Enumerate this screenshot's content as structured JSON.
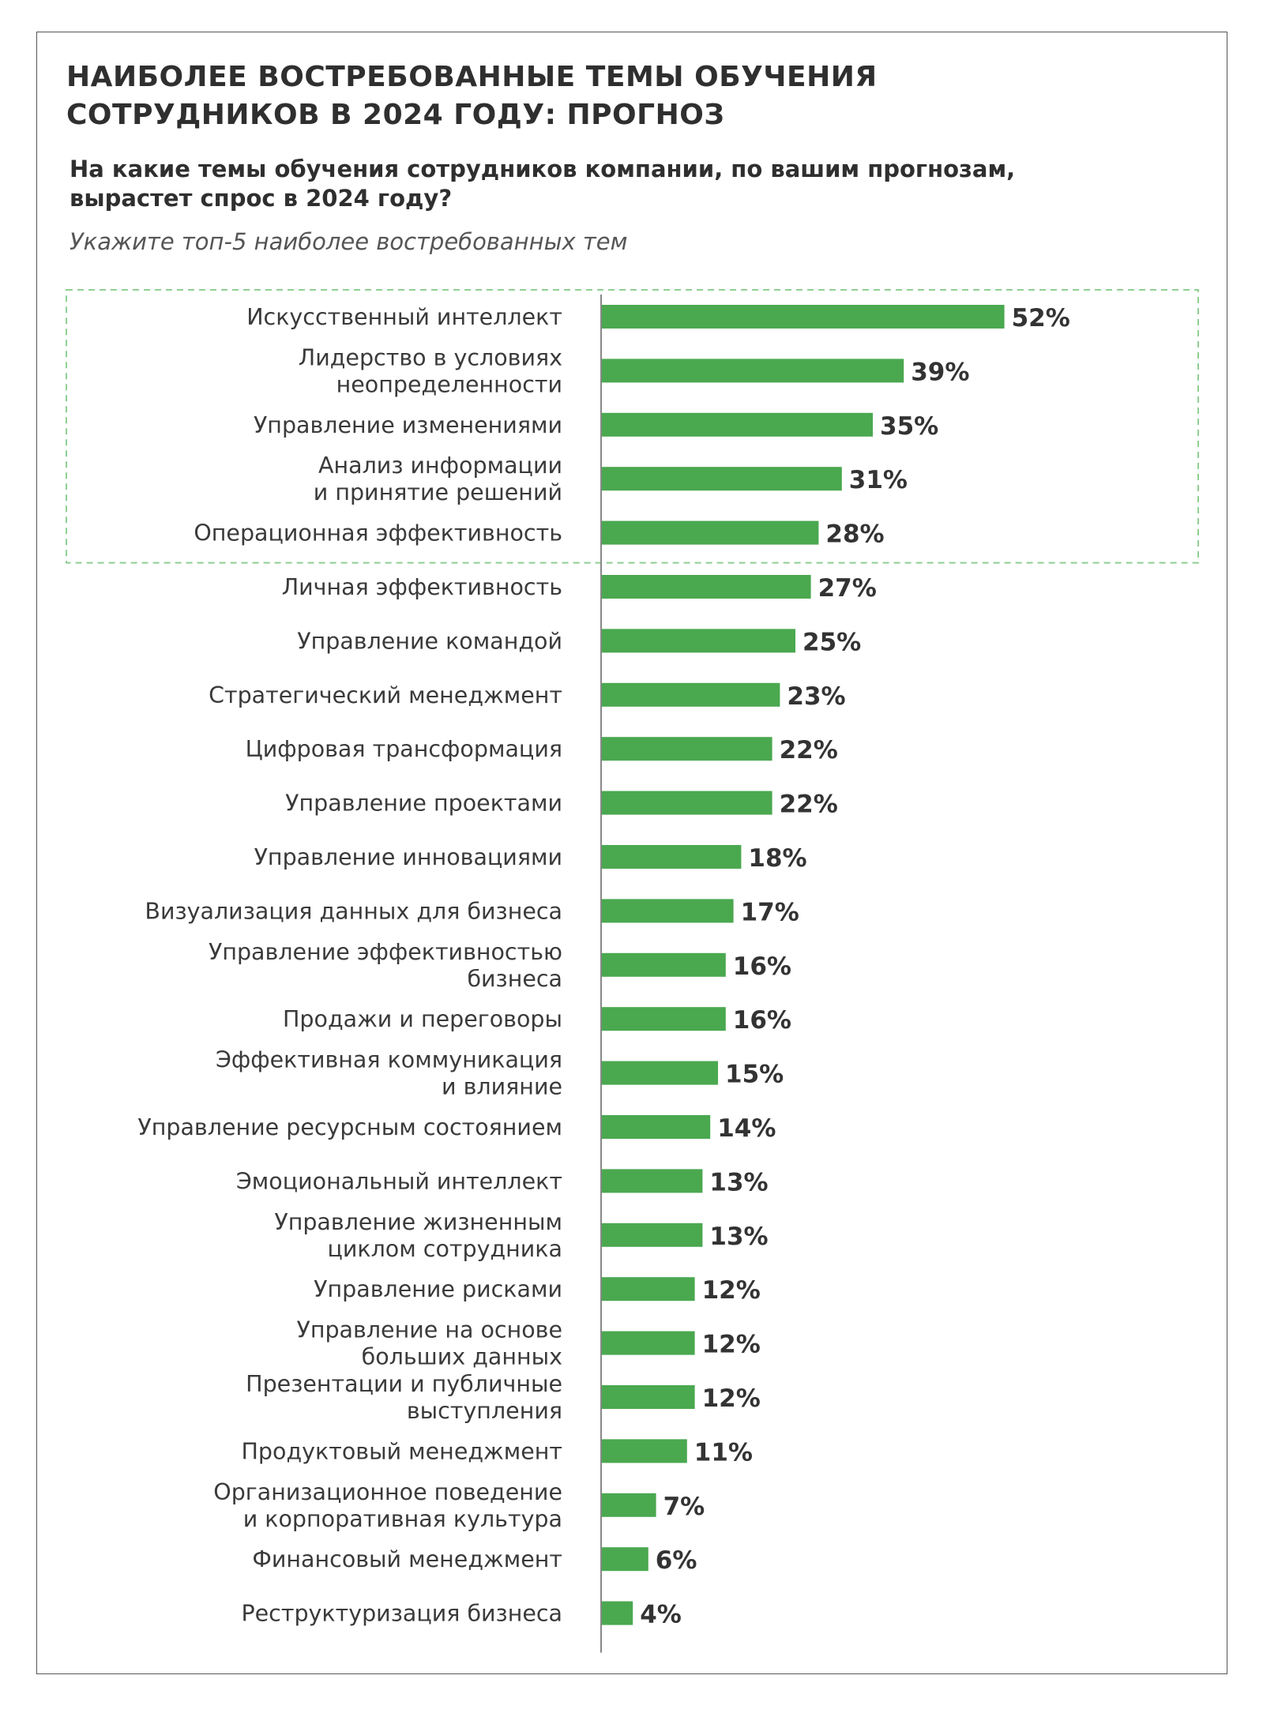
{
  "header": {
    "title_line1": "НАИБОЛЕЕ ВОСТРЕБОВАННЫЕ ТЕМЫ ОБУЧЕНИЯ",
    "title_line2": "СОТРУДНИКОВ В 2024 ГОДУ: ПРОГНОЗ",
    "question_line1": "На какие темы обучения сотрудников компании, по вашим прогнозам,",
    "question_line2": "вырастет спрос в 2024 году?",
    "instruction": "Укажите топ-5 наиболее востребованных тем"
  },
  "chart_data": {
    "type": "bar",
    "orientation": "horizontal",
    "title": "НАИБОЛЕЕ ВОСТРЕБОВАННЫЕ ТЕМЫ ОБУЧЕНИЯ СОТРУДНИКОВ В 2024 ГОДУ: ПРОГНОЗ",
    "categories": [
      [
        "Искусственный интеллект"
      ],
      [
        "Лидерство в условиях",
        "неопределенности"
      ],
      [
        "Управление изменениями"
      ],
      [
        "Анализ информации",
        "и принятие решений"
      ],
      [
        "Операционная эффективность"
      ],
      [
        "Личная эффективность"
      ],
      [
        "Управление командой"
      ],
      [
        "Стратегический менеджмент"
      ],
      [
        "Цифровая трансформация"
      ],
      [
        "Управление проектами"
      ],
      [
        "Управление инновациями"
      ],
      [
        "Визуализация данных для бизнеса"
      ],
      [
        "Управление эффективностью",
        "бизнеса"
      ],
      [
        "Продажи и переговоры"
      ],
      [
        "Эффективная коммуникация",
        "и влияние"
      ],
      [
        "Управление ресурсным состоянием"
      ],
      [
        "Эмоциональный интеллект"
      ],
      [
        "Управление жизненным",
        "циклом сотрудника"
      ],
      [
        "Управление рисками"
      ],
      [
        "Управление на основе",
        "больших данных"
      ],
      [
        "Презентации и публичные",
        "выступления"
      ],
      [
        "Продуктовый менеджмент"
      ],
      [
        "Организационное поведение",
        "и корпоративная культура"
      ],
      [
        "Финансовый менеджмент"
      ],
      [
        "Реструктуризация бизнеса"
      ]
    ],
    "values": [
      52,
      39,
      35,
      31,
      28,
      27,
      25,
      23,
      22,
      22,
      18,
      17,
      16,
      16,
      15,
      14,
      13,
      13,
      12,
      12,
      12,
      11,
      7,
      6,
      4
    ],
    "value_labels": [
      "52%",
      "39%",
      "35%",
      "31%",
      "28%",
      "27%",
      "25%",
      "23%",
      "22%",
      "22%",
      "18%",
      "17%",
      "16%",
      "16%",
      "15%",
      "14%",
      "13%",
      "13%",
      "12%",
      "12%",
      "12%",
      "11%",
      "7%",
      "6%",
      "4%"
    ],
    "unit": "%",
    "highlighted_top": 5,
    "xlim": [
      0,
      65
    ],
    "grid": false,
    "legend": "none",
    "bar_color": "#4aa84f",
    "highlight_border_color": "#8fcf93",
    "axis_color": "#888888"
  }
}
